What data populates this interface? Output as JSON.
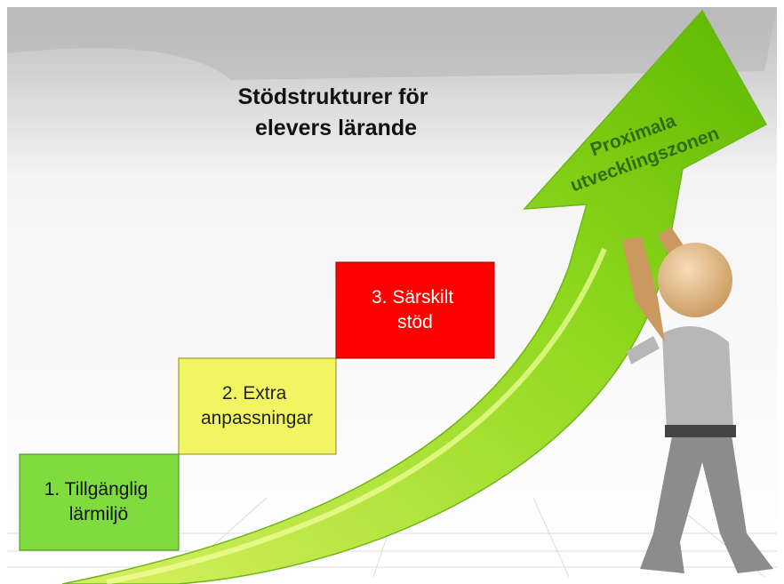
{
  "title": {
    "lines": [
      "Stödstrukturer för",
      "elevers lärande"
    ]
  },
  "arrow": {
    "lines": [
      "Proximala",
      "utvecklingszonen"
    ]
  },
  "steps": [
    {
      "lines": [
        "1. Tillgänglig",
        "lärmiljö"
      ]
    },
    {
      "lines": [
        "2. Extra",
        "anpassningar"
      ]
    },
    {
      "lines": [
        "3. Särskilt",
        "stöd"
      ]
    }
  ]
}
